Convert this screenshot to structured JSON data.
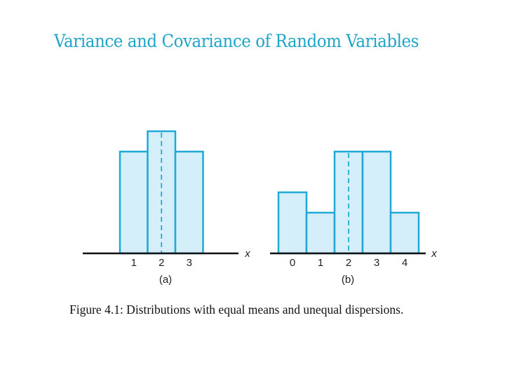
{
  "slide": {
    "title": "Variance and Covariance of Random Variables",
    "caption": "Figure 4.1: Distributions with equal means and unequal dispersions."
  },
  "colors": {
    "title": "#1fa5c9",
    "bar_fill": "#d4eefa",
    "bar_stroke": "#21a9d6",
    "axis": "#111111"
  },
  "chart_data": [
    {
      "type": "bar",
      "panel_label": "(a)",
      "axis_label": "x",
      "categories": [
        "1",
        "2",
        "3"
      ],
      "values": [
        1.0,
        1.2,
        1.0
      ],
      "mean": 2,
      "mean_label": "2"
    },
    {
      "type": "bar",
      "panel_label": "(b)",
      "axis_label": "x",
      "categories": [
        "0",
        "1",
        "2",
        "3",
        "4"
      ],
      "values": [
        0.6,
        0.4,
        1.0,
        1.0,
        0.4
      ],
      "mean": 2,
      "mean_label": "2"
    }
  ]
}
